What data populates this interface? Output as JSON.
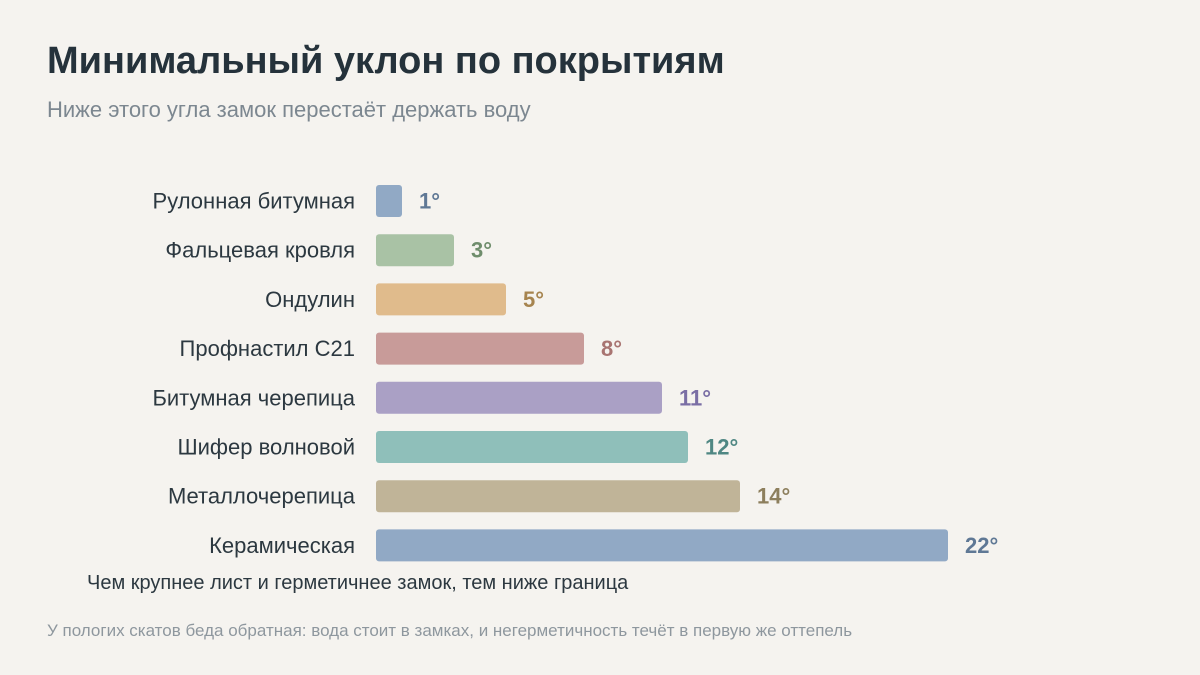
{
  "header": {
    "title": "Минимальный уклон по покрытиям",
    "subtitle": "Ниже этого угла замок перестаёт держать воду"
  },
  "annotation": "Чем крупнее лист и герметичнее замок, тем ниже граница",
  "footnote": "У пологих скатов беда обратная: вода стоит в замках, и негерметичность течёт в первую же оттепель",
  "chart_data": {
    "type": "bar",
    "orientation": "horizontal",
    "title": "Минимальный уклон по покрытиям",
    "subtitle": "Ниже этого угла замок перестаёт держать воду",
    "categories": [
      "Рулонная битумная",
      "Фальцевая кровля",
      "Ондулин",
      "Профнастил С21",
      "Битумная черепица",
      "Шифер волновой",
      "Металлочерепица",
      "Керамическая"
    ],
    "values": [
      1,
      3,
      5,
      8,
      11,
      12,
      14,
      22
    ],
    "value_labels": [
      "1°",
      "3°",
      "5°",
      "8°",
      "11°",
      "12°",
      "14°",
      "22°"
    ],
    "bar_colors": [
      "#91a9c5",
      "#a9c2a5",
      "#e0bb8c",
      "#c89b99",
      "#aaa0c5",
      "#8fbfba",
      "#c0b498",
      "#91a9c5"
    ],
    "label_colors": [
      "#5f7895",
      "#6f8d6c",
      "#a6844f",
      "#a87471",
      "#7a6ea5",
      "#4f8783",
      "#8d7f5d",
      "#5f7895"
    ],
    "xlim": [
      0,
      22
    ],
    "xlabel": "",
    "ylabel": "",
    "grid": false,
    "legend": "none"
  }
}
